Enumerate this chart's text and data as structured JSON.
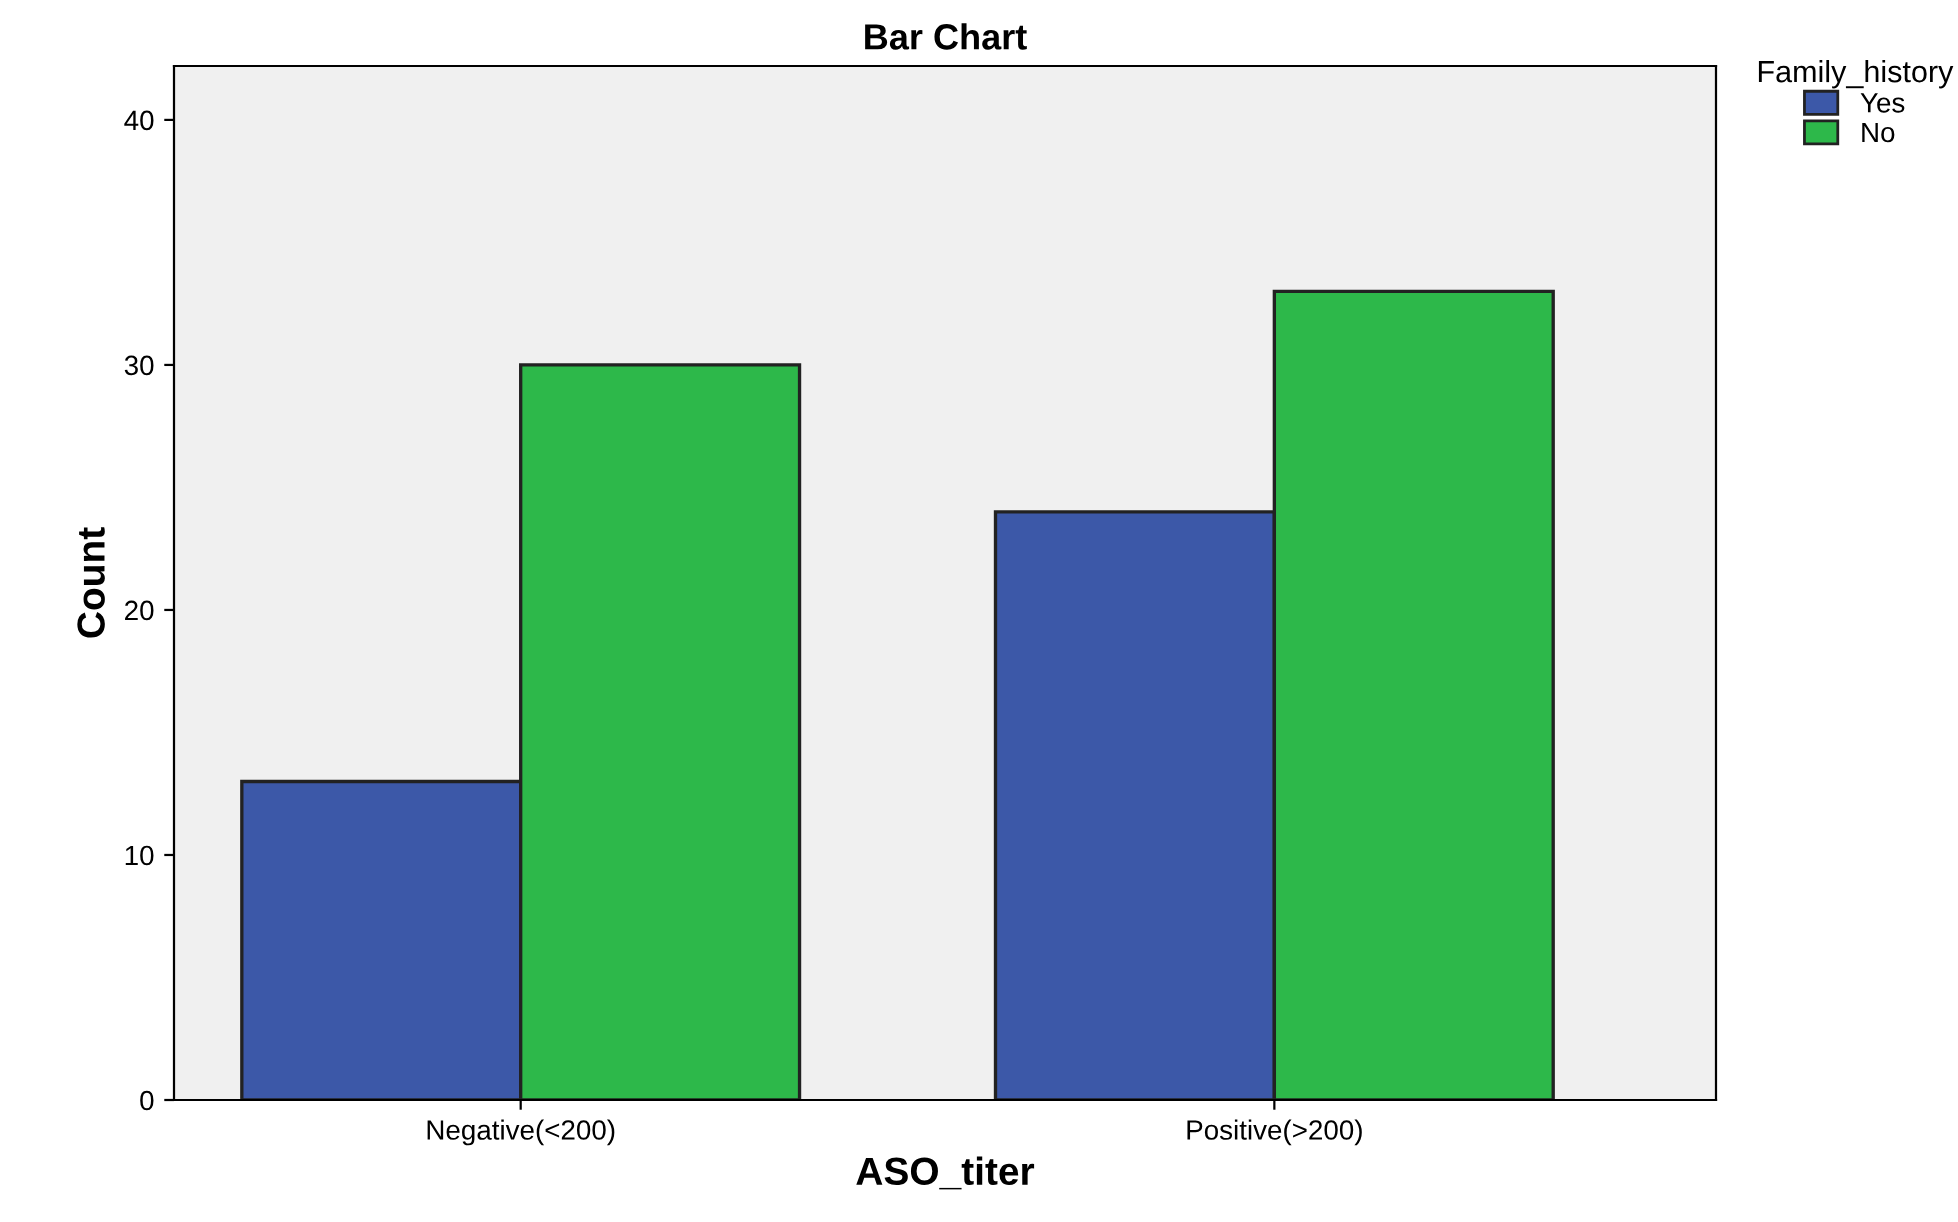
{
  "chart_data": {
    "type": "bar",
    "title": "Bar Chart",
    "xlabel": "ASO_titer",
    "ylabel": "Count",
    "legend_title": "Family_history",
    "categories": [
      "Negative(<200)",
      "Positive(>200)"
    ],
    "series": [
      {
        "name": "Yes",
        "color": "#3c58a8",
        "values": [
          13,
          24
        ]
      },
      {
        "name": "No",
        "color": "#2db84a",
        "values": [
          30,
          33
        ]
      }
    ],
    "ylim": [
      0,
      42.2
    ],
    "yticks": [
      0,
      10,
      20,
      30,
      40
    ],
    "grid": false,
    "legend": "top right"
  }
}
